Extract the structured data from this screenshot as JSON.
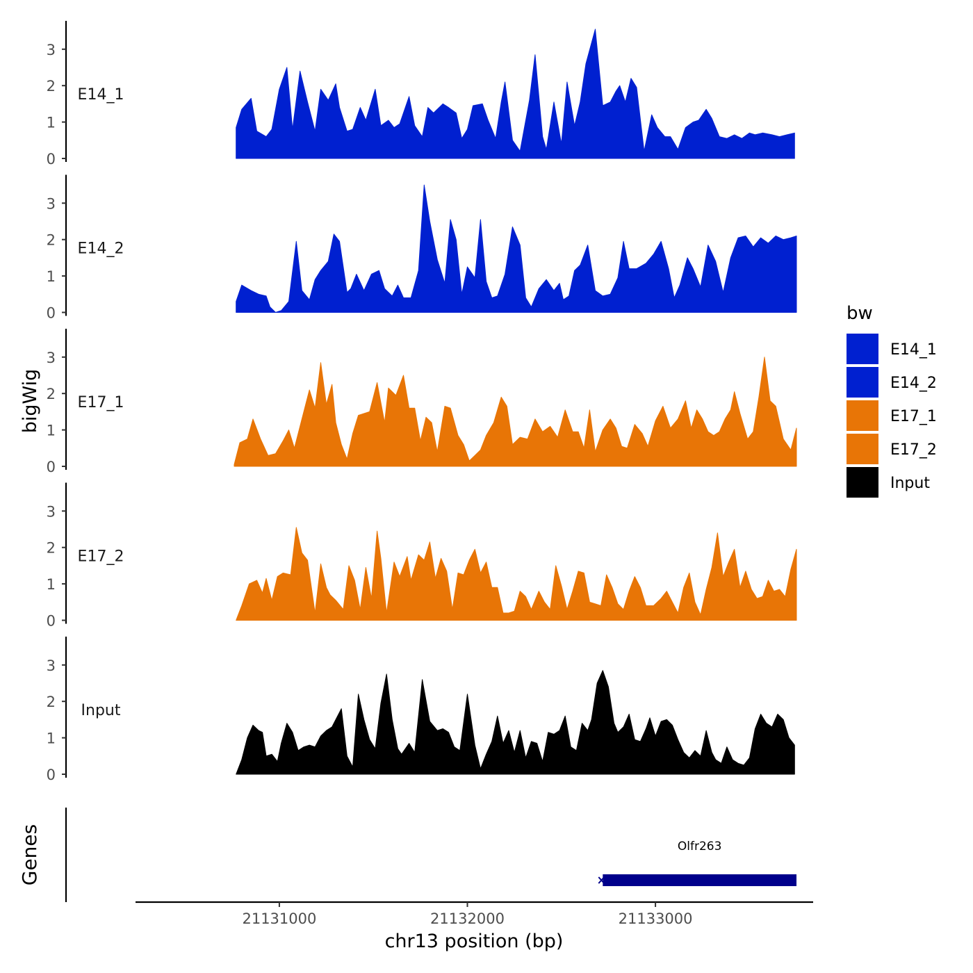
{
  "chart_data": {
    "type": "area",
    "title": "",
    "xlabel": "chr13 position (bp)",
    "ylabel": "bigWig",
    "genes_label": "Genes",
    "xlim": [
      21130250,
      21133750
    ],
    "x_ticks": [
      21131000,
      21132000,
      21133000
    ],
    "x_tick_labels": [
      "21131000",
      "21132000",
      "21133000"
    ],
    "ylim": [
      0,
      3.7
    ],
    "y_ticks": [
      0,
      1,
      2,
      3
    ],
    "y_tick_labels": [
      "0",
      "1",
      "2",
      "3"
    ],
    "legend": {
      "title": "bw",
      "position": "right",
      "entries": [
        {
          "label": "E14_1",
          "color": "#0020D0"
        },
        {
          "label": "E14_2",
          "color": "#0020D0"
        },
        {
          "label": "E17_1",
          "color": "#E87506"
        },
        {
          "label": "E17_2",
          "color": "#E87506"
        },
        {
          "label": "Input",
          "color": "#000000"
        }
      ]
    },
    "series": [
      {
        "name": "E14_1",
        "label": "E14_1",
        "color": "#0020D0",
        "x": [
          21130770,
          21130800,
          21130850,
          21130880,
          21130930,
          21130960,
          21131000,
          21131040,
          21131070,
          21131110,
          21131150,
          21131190,
          21131220,
          21131260,
          21131300,
          21131320,
          21131360,
          21131390,
          21131430,
          21131460,
          21131510,
          21131540,
          21131580,
          21131610,
          21131640,
          21131690,
          21131720,
          21131760,
          21131790,
          21131820,
          21131870,
          21131900,
          21131940,
          21131970,
          21132000,
          21132030,
          21132080,
          21132110,
          21132150,
          21132180,
          21132200,
          21132240,
          21132280,
          21132330,
          21132360,
          21132400,
          21132420,
          21132460,
          21132500,
          21132530,
          21132570,
          21132600,
          21132630,
          21132680,
          21132720,
          21132760,
          21132790,
          21132810,
          21132840,
          21132870,
          21132900,
          21132940,
          21132980,
          21133010,
          21133050,
          21133080,
          21133120,
          21133160,
          21133200,
          21133230,
          21133270,
          21133300,
          21133340,
          21133380,
          21133420,
          21133460,
          21133500,
          21133530,
          21133570,
          21133620,
          21133660,
          21133700,
          21133740
        ],
        "values": [
          0.85,
          1.35,
          1.65,
          0.75,
          0.6,
          0.8,
          1.9,
          2.5,
          0.8,
          2.4,
          1.55,
          0.75,
          1.9,
          1.6,
          2.05,
          1.4,
          0.75,
          0.8,
          1.4,
          1.05,
          1.9,
          0.9,
          1.05,
          0.85,
          0.95,
          1.7,
          0.9,
          0.6,
          1.4,
          1.25,
          1.5,
          1.4,
          1.25,
          0.55,
          0.8,
          1.45,
          1.5,
          1.05,
          0.55,
          1.55,
          2.1,
          0.5,
          0.2,
          1.6,
          2.85,
          0.6,
          0.25,
          1.55,
          0.4,
          2.1,
          0.9,
          1.55,
          2.6,
          3.55,
          1.45,
          1.55,
          1.85,
          2.0,
          1.55,
          2.2,
          1.95,
          0.2,
          1.2,
          0.85,
          0.6,
          0.6,
          0.25,
          0.85,
          1.0,
          1.05,
          1.35,
          1.1,
          0.6,
          0.55,
          0.65,
          0.55,
          0.7,
          0.65,
          0.7,
          0.65,
          0.6,
          0.65,
          0.7
        ]
      },
      {
        "name": "E14_2",
        "label": "E14_2",
        "color": "#0020D0",
        "x": [
          21130770,
          21130800,
          21130850,
          21130890,
          21130930,
          21130950,
          21130980,
          21131010,
          21131050,
          21131090,
          21131120,
          21131160,
          21131190,
          21131220,
          21131260,
          21131290,
          21131320,
          21131360,
          21131380,
          21131410,
          21131450,
          21131490,
          21131530,
          21131560,
          21131600,
          21131630,
          21131660,
          21131700,
          21131740,
          21131770,
          21131800,
          21131840,
          21131880,
          21131910,
          21131940,
          21131970,
          21132000,
          21132040,
          21132070,
          21132100,
          21132130,
          21132160,
          21132200,
          21132240,
          21132280,
          21132310,
          21132340,
          21132380,
          21132420,
          21132460,
          21132490,
          21132510,
          21132540,
          21132570,
          21132600,
          21132640,
          21132680,
          21132720,
          21132760,
          21132800,
          21132830,
          21132860,
          21132900,
          21132950,
          21132990,
          21133030,
          21133070,
          21133100,
          21133130,
          21133170,
          21133200,
          21133240,
          21133280,
          21133320,
          21133360,
          21133400,
          21133440,
          21133480,
          21133520,
          21133560,
          21133600,
          21133640,
          21133680,
          21133720,
          21133750
        ],
        "values": [
          0.3,
          0.75,
          0.6,
          0.5,
          0.45,
          0.15,
          0.0,
          0.05,
          0.3,
          1.95,
          0.6,
          0.35,
          0.9,
          1.15,
          1.4,
          2.15,
          1.95,
          0.55,
          0.65,
          1.05,
          0.6,
          1.05,
          1.15,
          0.65,
          0.45,
          0.75,
          0.4,
          0.4,
          1.15,
          3.5,
          2.5,
          1.45,
          0.8,
          2.55,
          2.0,
          0.5,
          1.25,
          0.95,
          2.55,
          0.85,
          0.4,
          0.45,
          1.05,
          2.35,
          1.85,
          0.4,
          0.15,
          0.65,
          0.9,
          0.6,
          0.8,
          0.35,
          0.45,
          1.15,
          1.3,
          1.85,
          0.6,
          0.45,
          0.5,
          0.95,
          1.95,
          1.2,
          1.2,
          1.35,
          1.6,
          1.95,
          1.2,
          0.4,
          0.75,
          1.5,
          1.2,
          0.7,
          1.85,
          1.4,
          0.55,
          1.5,
          2.05,
          2.1,
          1.8,
          2.05,
          1.9,
          2.1,
          2.0,
          2.05,
          2.1
        ]
      },
      {
        "name": "E17_1",
        "label": "E17_1",
        "color": "#E87506",
        "x": [
          21130760,
          21130790,
          21130830,
          21130860,
          21130900,
          21130940,
          21130980,
          21131020,
          21131050,
          21131080,
          21131120,
          21131160,
          21131190,
          21131220,
          21131250,
          21131280,
          21131300,
          21131330,
          21131360,
          21131390,
          21131420,
          21131450,
          21131480,
          21131520,
          21131560,
          21131580,
          21131620,
          21131660,
          21131690,
          21131720,
          21131750,
          21131780,
          21131810,
          21131840,
          21131880,
          21131910,
          21131950,
          21131980,
          21132010,
          21132040,
          21132070,
          21132100,
          21132140,
          21132180,
          21132210,
          21132240,
          21132280,
          21132320,
          21132360,
          21132400,
          21132440,
          21132480,
          21132520,
          21132560,
          21132590,
          21132620,
          21132650,
          21132680,
          21132720,
          21132760,
          21132790,
          21132820,
          21132850,
          21132890,
          21132930,
          21132960,
          21133000,
          21133040,
          21133080,
          21133120,
          21133160,
          21133190,
          21133220,
          21133250,
          21133280,
          21133310,
          21133340,
          21133370,
          21133400,
          21133420,
          21133450,
          21133490,
          21133520,
          21133550,
          21133580,
          21133610,
          21133640,
          21133680,
          21133720,
          21133750
        ],
        "values": [
          0.05,
          0.65,
          0.75,
          1.3,
          0.75,
          0.3,
          0.35,
          0.7,
          1.0,
          0.5,
          1.3,
          2.1,
          1.6,
          2.85,
          1.7,
          2.25,
          1.2,
          0.6,
          0.2,
          0.9,
          1.4,
          1.45,
          1.5,
          2.3,
          1.2,
          2.15,
          1.95,
          2.5,
          1.6,
          1.6,
          0.7,
          1.35,
          1.2,
          0.4,
          1.65,
          1.6,
          0.85,
          0.6,
          0.15,
          0.3,
          0.45,
          0.85,
          1.2,
          1.9,
          1.65,
          0.6,
          0.8,
          0.75,
          1.3,
          0.95,
          1.1,
          0.8,
          1.55,
          0.95,
          0.95,
          0.5,
          1.55,
          0.4,
          1.0,
          1.3,
          1.05,
          0.55,
          0.5,
          1.15,
          0.9,
          0.55,
          1.25,
          1.65,
          1.05,
          1.3,
          1.8,
          1.05,
          1.55,
          1.3,
          0.95,
          0.85,
          0.95,
          1.3,
          1.55,
          2.05,
          1.45,
          0.75,
          0.95,
          1.9,
          3.0,
          1.8,
          1.65,
          0.75,
          0.45,
          1.05
        ]
      },
      {
        "name": "E17_2",
        "label": "E17_2",
        "color": "#E87506",
        "x": [
          21130770,
          21130800,
          21130840,
          21130880,
          21130910,
          21130930,
          21130960,
          21130990,
          21131020,
          21131060,
          21131090,
          21131120,
          21131150,
          21131190,
          21131220,
          21131250,
          21131270,
          21131300,
          21131340,
          21131370,
          21131400,
          21131430,
          21131460,
          21131490,
          21131520,
          21131540,
          21131570,
          21131610,
          21131640,
          21131680,
          21131700,
          21131740,
          21131770,
          21131800,
          21131830,
          21131860,
          21131890,
          21131920,
          21131950,
          21131980,
          21132010,
          21132040,
          21132070,
          21132100,
          21132130,
          21132160,
          21132190,
          21132220,
          21132250,
          21132280,
          21132310,
          21132340,
          21132380,
          21132410,
          21132440,
          21132470,
          21132500,
          21132530,
          21132560,
          21132590,
          21132620,
          21132650,
          21132680,
          21132710,
          21132740,
          21132770,
          21132800,
          21132830,
          21132860,
          21132890,
          21132920,
          21132950,
          21132990,
          21133030,
          21133060,
          21133090,
          21133120,
          21133150,
          21133180,
          21133210,
          21133240,
          21133270,
          21133300,
          21133330,
          21133360,
          21133390,
          21133420,
          21133450,
          21133480,
          21133510,
          21133540,
          21133570,
          21133600,
          21133630,
          21133660,
          21133690,
          21133720,
          21133750
        ],
        "values": [
          0.0,
          0.4,
          1.0,
          1.1,
          0.75,
          1.15,
          0.55,
          1.2,
          1.3,
          1.25,
          2.55,
          1.85,
          1.65,
          0.2,
          1.55,
          0.9,
          0.7,
          0.55,
          0.3,
          1.5,
          1.1,
          0.3,
          1.45,
          0.6,
          2.45,
          1.7,
          0.2,
          1.6,
          1.2,
          1.75,
          1.1,
          1.8,
          1.65,
          2.15,
          1.15,
          1.7,
          1.35,
          0.3,
          1.3,
          1.25,
          1.65,
          1.95,
          1.3,
          1.6,
          0.9,
          0.9,
          0.2,
          0.2,
          0.25,
          0.8,
          0.65,
          0.3,
          0.8,
          0.5,
          0.3,
          1.5,
          0.95,
          0.3,
          0.8,
          1.35,
          1.3,
          0.5,
          0.45,
          0.4,
          1.25,
          0.9,
          0.45,
          0.3,
          0.8,
          1.2,
          0.9,
          0.4,
          0.4,
          0.6,
          0.8,
          0.5,
          0.2,
          0.9,
          1.3,
          0.5,
          0.15,
          0.85,
          1.45,
          2.4,
          1.2,
          1.6,
          1.95,
          0.9,
          1.35,
          0.85,
          0.6,
          0.65,
          1.1,
          0.8,
          0.85,
          0.65,
          1.4,
          1.95
        ]
      },
      {
        "name": "Input",
        "label": "Input",
        "color": "#000000",
        "x": [
          21130770,
          21130800,
          21130830,
          21130860,
          21130890,
          21130910,
          21130930,
          21130960,
          21130990,
          21131010,
          21131040,
          21131070,
          21131100,
          21131130,
          21131160,
          21131190,
          21131220,
          21131250,
          21131280,
          21131300,
          21131330,
          21131360,
          21131390,
          21131420,
          21131450,
          21131480,
          21131510,
          21131540,
          21131570,
          21131600,
          21131630,
          21131650,
          21131690,
          21131720,
          21131760,
          21131800,
          21131840,
          21131870,
          21131900,
          21131930,
          21131960,
          21132000,
          21132040,
          21132070,
          21132100,
          21132130,
          21132160,
          21132190,
          21132220,
          21132250,
          21132280,
          21132310,
          21132340,
          21132370,
          21132400,
          21132430,
          21132460,
          21132490,
          21132520,
          21132550,
          21132580,
          21132610,
          21132640,
          21132660,
          21132690,
          21132720,
          21132750,
          21132780,
          21132800,
          21132830,
          21132860,
          21132890,
          21132920,
          21132950,
          21132970,
          21133000,
          21133030,
          21133060,
          21133090,
          21133120,
          21133150,
          21133180,
          21133210,
          21133240,
          21133270,
          21133300,
          21133320,
          21133350,
          21133380,
          21133410,
          21133440,
          21133470,
          21133500,
          21133530,
          21133560,
          21133590,
          21133620,
          21133650,
          21133680,
          21133710,
          21133740
        ],
        "values": [
          0.0,
          0.4,
          1.0,
          1.35,
          1.2,
          1.15,
          0.5,
          0.55,
          0.35,
          0.85,
          1.4,
          1.15,
          0.65,
          0.75,
          0.8,
          0.75,
          1.05,
          1.2,
          1.3,
          1.5,
          1.8,
          0.5,
          0.2,
          2.2,
          1.5,
          0.95,
          0.7,
          1.95,
          2.75,
          1.5,
          0.7,
          0.55,
          0.85,
          0.6,
          2.6,
          1.45,
          1.2,
          1.25,
          1.15,
          0.75,
          0.65,
          2.2,
          0.8,
          0.15,
          0.55,
          0.9,
          1.6,
          0.85,
          1.2,
          0.6,
          1.2,
          0.45,
          0.9,
          0.85,
          0.35,
          1.15,
          1.1,
          1.2,
          1.6,
          0.75,
          0.65,
          1.4,
          1.2,
          1.5,
          2.5,
          2.85,
          2.4,
          1.4,
          1.15,
          1.3,
          1.65,
          0.95,
          0.9,
          1.25,
          1.55,
          1.05,
          1.45,
          1.5,
          1.35,
          0.95,
          0.6,
          0.45,
          0.65,
          0.5,
          1.2,
          0.6,
          0.4,
          0.3,
          0.75,
          0.4,
          0.3,
          0.25,
          0.45,
          1.25,
          1.65,
          1.4,
          1.3,
          1.65,
          1.5,
          1.0,
          0.8
        ]
      }
    ],
    "genes": [
      {
        "name": "Olfr263",
        "start": 21132720,
        "end": 21133750,
        "strand": "-",
        "color": "#00008B"
      }
    ]
  }
}
